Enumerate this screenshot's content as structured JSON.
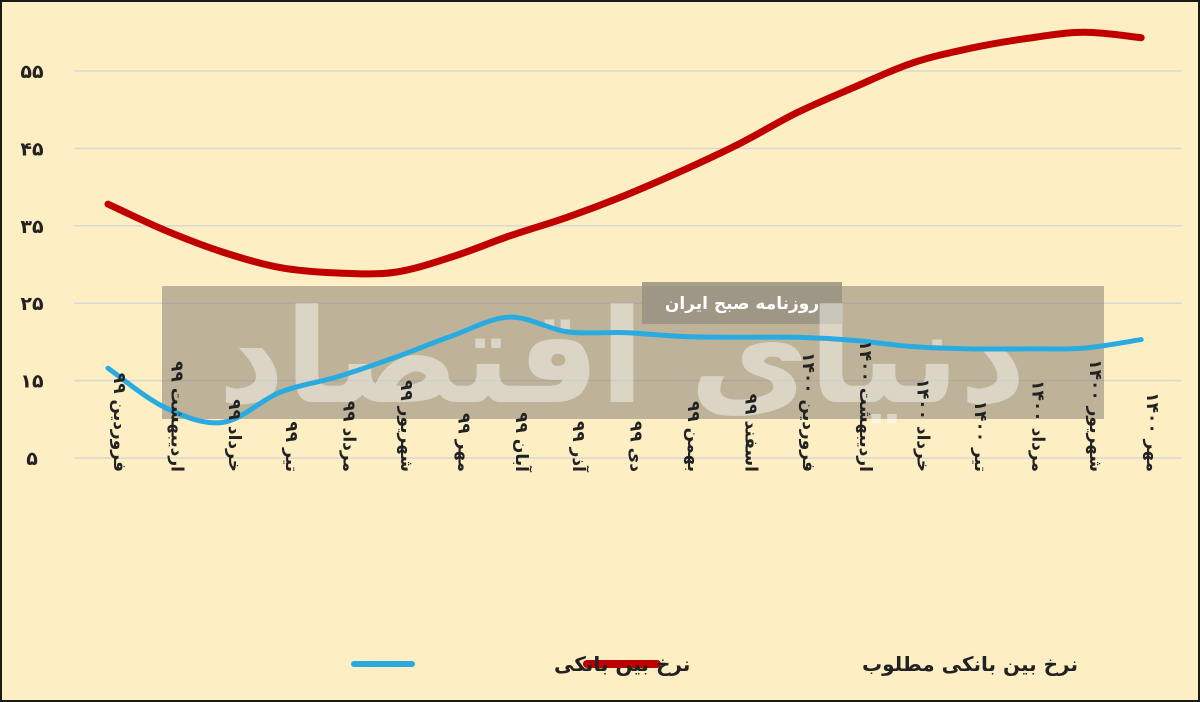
{
  "chart_data": {
    "type": "line",
    "categories": [
      "فروردین ۹۹",
      "اردیبهشت ۹۹",
      "خرداد ۹۹",
      "تیر ۹۹",
      "مرداد ۹۹",
      "شهریور ۹۹",
      "مهر ۹۹",
      "آبان ۹۹",
      "آذر ۹۹",
      "دی ۹۹",
      "بهمن ۹۹",
      "اسفند ۹۹",
      "فروردین ۱۴۰۰",
      "اردیبهشت ۱۴۰۰",
      "خرداد ۱۴۰۰",
      "تیر ۱۴۰۰",
      "مرداد ۱۴۰۰",
      "شهریور ۱۴۰۰",
      "مهر ۱۴۰۰"
    ],
    "series": [
      {
        "name": "نرخ بین بانکی",
        "color": "#29abe2",
        "values": [
          16.6,
          11.5,
          9.6,
          13.5,
          15.5,
          18.0,
          20.8,
          23.2,
          21.3,
          21.2,
          20.7,
          20.6,
          20.6,
          20.2,
          19.4,
          19.1,
          19.1,
          19.2,
          20.3
        ]
      },
      {
        "name": "نرخ بین بانکی مطلوب",
        "color": "#c00000",
        "values": [
          37.8,
          34.4,
          31.6,
          29.6,
          28.9,
          29.0,
          31.0,
          33.7,
          36.1,
          38.9,
          42.1,
          45.6,
          49.6,
          52.9,
          56.0,
          57.9,
          59.2,
          60.0,
          59.3
        ]
      }
    ],
    "yticks": [
      5,
      15,
      25,
      35,
      45,
      55
    ],
    "ytick_labels": [
      "۵",
      "۱۵",
      "۲۵",
      "۳۵",
      "۴۵",
      "۵۵"
    ],
    "ylim": [
      5,
      60
    ],
    "grid": true,
    "legend_position": "bottom",
    "title": "",
    "xlabel": "",
    "ylabel": ""
  },
  "watermark": {
    "logo_text": "دنیای اقتصاد",
    "subtitle": "روزنامه صبح ایران"
  },
  "colors": {
    "background": "#fdefc3",
    "grid": "#d9d7d2",
    "watermark_band": "#8a8275"
  }
}
